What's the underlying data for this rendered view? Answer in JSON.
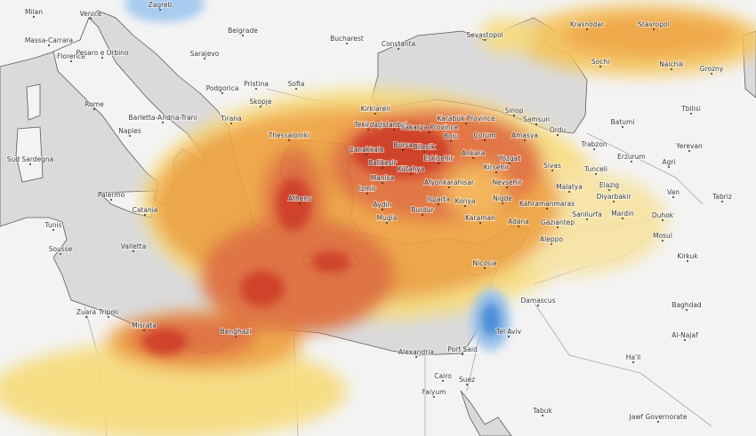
{
  "map": {
    "type": "weather anomaly heatmap",
    "colors": {
      "land": "#f3f3f3",
      "sea": "#dadadc",
      "coast": "#5a5a5a",
      "heat_low": "#f7dc7a",
      "heat_mid": "#efa23a",
      "heat_high": "#e06a35",
      "heat_max": "#cc3b25",
      "cold": "#4a8fd6"
    },
    "labels": [
      "Zagreb",
      "Milan",
      "Venice",
      "Massa-Carrara",
      "Florence",
      "Pesaro e Urbino",
      "Rome",
      "Naples",
      "Barletta-Andria-Trani",
      "Sarajevo",
      "Belgrade",
      "Bucharest",
      "Constanta",
      "Podgorica",
      "Pristina",
      "Skopje",
      "Sofia",
      "Tirana",
      "Thessaloniki",
      "Athens",
      "Palermo",
      "Catania",
      "Sud Sardegna",
      "Valletta",
      "Tunis",
      "Sousse",
      "Zuara",
      "Tripoli",
      "Misrata",
      "Benghazi",
      "Alexandria",
      "Port Said",
      "Cairo",
      "Suez",
      "Faiyum",
      "Tel Aviv",
      "Damascus",
      "Nicosia",
      "Adana",
      "Gaziantep",
      "Aleppo",
      "Sanliurfa",
      "Mardin",
      "Duhok",
      "Mosul",
      "Kirkuk",
      "Baghdad",
      "Al-Najaf",
      "Tabuk",
      "Ha'il",
      "Jawf Governorate",
      "Sevastopol",
      "Krasnodar",
      "Stavropol",
      "Sochi",
      "Nalchik",
      "Grozny",
      "Tbilisi",
      "Sinop",
      "Samsun",
      "Ordu",
      "Batumi",
      "Trabzon",
      "Erzurum",
      "Agri",
      "Yerevan",
      "Sivas",
      "Tunceli",
      "Malatya",
      "Elazig",
      "Van",
      "Diyarbakir",
      "Tabriz",
      "Kahramanmaras",
      "Kirklareli",
      "Tekirdag",
      "Istanbul",
      "Sakarya Province",
      "Karabük Province",
      "Bolu",
      "Çorum",
      "Amasya",
      "Ankara",
      "Yozgat",
      "Kirsehir",
      "Nevsehir",
      "Nigde",
      "Konya",
      "Karaman",
      "Bilecik",
      "Eskisehir",
      "Bursa",
      "Çanakkale",
      "Balikesir",
      "Kütahya",
      "Manisa",
      "Afyonkarahisar",
      "Izmir",
      "Isparta",
      "Aydin",
      "Burdur",
      "Mugla"
    ]
  }
}
